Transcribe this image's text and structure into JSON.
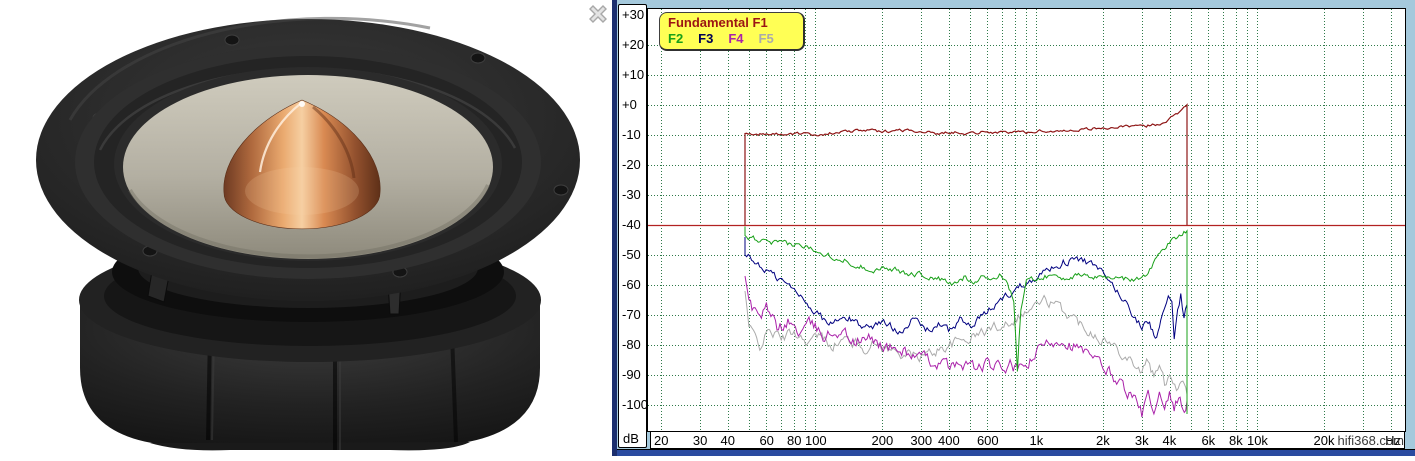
{
  "photo": {
    "description": "Black mid-woofer speaker driver with grey cone, rubber surround and polished copper phase plug, viewed from above on white background"
  },
  "close_icon": {
    "glyph": "close-x",
    "color": "#b8b8b8"
  },
  "panel": {
    "bg": "#a5c9dc",
    "frame_color": "#1c2f6e",
    "bottom_bar_color": "#2a4ba0"
  },
  "chart_data": {
    "type": "line",
    "title": "",
    "x_axis": {
      "scale": "log",
      "unit": "Hz",
      "range_hz": [
        17,
        46000
      ],
      "ticks": [
        {
          "f": 20,
          "label": "20"
        },
        {
          "f": 30,
          "label": "30"
        },
        {
          "f": 40,
          "label": "40"
        },
        {
          "f": 60,
          "label": "60"
        },
        {
          "f": 80,
          "label": "80"
        },
        {
          "f": 100,
          "label": "100"
        },
        {
          "f": 200,
          "label": "200"
        },
        {
          "f": 300,
          "label": "300"
        },
        {
          "f": 400,
          "label": "400"
        },
        {
          "f": 600,
          "label": "600"
        },
        {
          "f": 1000,
          "label": "1k"
        },
        {
          "f": 2000,
          "label": "2k"
        },
        {
          "f": 3000,
          "label": "3k"
        },
        {
          "f": 4000,
          "label": "4k"
        },
        {
          "f": 6000,
          "label": "6k"
        },
        {
          "f": 8000,
          "label": "8k"
        },
        {
          "f": 10000,
          "label": "10k"
        },
        {
          "f": 20000,
          "label": "20k"
        }
      ],
      "grid_freqs": [
        20,
        30,
        40,
        50,
        60,
        70,
        80,
        90,
        100,
        200,
        300,
        400,
        500,
        600,
        700,
        800,
        900,
        1000,
        2000,
        3000,
        4000,
        5000,
        6000,
        7000,
        8000,
        9000,
        10000,
        20000,
        30000,
        40000
      ]
    },
    "y_axis": {
      "unit": "dB",
      "range_db": [
        -100,
        30
      ],
      "labels": [
        {
          "db": 30,
          "label": "+30"
        },
        {
          "db": 20,
          "label": "+20"
        },
        {
          "db": 10,
          "label": "+10"
        },
        {
          "db": 0,
          "label": "+0"
        },
        {
          "db": -10,
          "label": "-10"
        },
        {
          "db": -20,
          "label": "-20"
        },
        {
          "db": -30,
          "label": "-30"
        },
        {
          "db": -40,
          "label": "-40"
        },
        {
          "db": -50,
          "label": "-50"
        },
        {
          "db": -60,
          "label": "-60"
        },
        {
          "db": -70,
          "label": "-70"
        },
        {
          "db": -80,
          "label": "-80"
        },
        {
          "db": -90,
          "label": "-90"
        },
        {
          "db": -100,
          "label": "-100"
        }
      ],
      "grid_dbs": [
        20,
        10,
        0,
        -10,
        -20,
        -30,
        -50,
        -60,
        -70,
        -80,
        -90,
        -100
      ]
    },
    "grid_color": "#2f7a4a",
    "legend": {
      "bg": "#ffff55",
      "title": "Fundamental F1",
      "title_color": "#9b1414",
      "items": [
        {
          "label": "F2",
          "color": "#18a018"
        },
        {
          "label": "F3",
          "color": "#000055"
        },
        {
          "label": "F4",
          "color": "#aa22aa"
        },
        {
          "label": "F5",
          "color": "#ababab"
        }
      ]
    },
    "marker_line": {
      "db": -40,
      "color": "#b22222"
    },
    "band": {
      "start_hz": 48,
      "end_hz": 4800
    },
    "watermark": "hifi368.com",
    "series": [
      {
        "name": "F5",
        "color": "#ababab",
        "noise": 2.2,
        "points": [
          [
            48,
            -62
          ],
          [
            50,
            -74
          ],
          [
            56,
            -80
          ],
          [
            62,
            -75
          ],
          [
            70,
            -78
          ],
          [
            80,
            -75.5
          ],
          [
            92,
            -79
          ],
          [
            105,
            -77
          ],
          [
            120,
            -80
          ],
          [
            140,
            -78
          ],
          [
            165,
            -81
          ],
          [
            190,
            -79.5
          ],
          [
            220,
            -82
          ],
          [
            260,
            -83
          ],
          [
            300,
            -84
          ],
          [
            350,
            -82
          ],
          [
            400,
            -80
          ],
          [
            460,
            -78.5
          ],
          [
            520,
            -77
          ],
          [
            600,
            -75
          ],
          [
            700,
            -73
          ],
          [
            800,
            -71
          ],
          [
            900,
            -69
          ],
          [
            1000,
            -66.5
          ],
          [
            1100,
            -65
          ],
          [
            1200,
            -66.5
          ],
          [
            1350,
            -69
          ],
          [
            1500,
            -71.5
          ],
          [
            1700,
            -74.5
          ],
          [
            1900,
            -77
          ],
          [
            2100,
            -79
          ],
          [
            2400,
            -82
          ],
          [
            2700,
            -85
          ],
          [
            3000,
            -89
          ],
          [
            3200,
            -85
          ],
          [
            3400,
            -91
          ],
          [
            3600,
            -87
          ],
          [
            3800,
            -93
          ],
          [
            4000,
            -89
          ],
          [
            4300,
            -94
          ],
          [
            4600,
            -91
          ],
          [
            4800,
            -95
          ]
        ]
      },
      {
        "name": "F4",
        "color": "#aa22aa",
        "noise": 2.6,
        "points": [
          [
            48,
            -57
          ],
          [
            50,
            -66
          ],
          [
            55,
            -71
          ],
          [
            60,
            -68
          ],
          [
            68,
            -75
          ],
          [
            75,
            -72
          ],
          [
            85,
            -76
          ],
          [
            95,
            -73
          ],
          [
            110,
            -77
          ],
          [
            130,
            -75
          ],
          [
            150,
            -79
          ],
          [
            180,
            -78
          ],
          [
            210,
            -81
          ],
          [
            250,
            -82
          ],
          [
            300,
            -84.5
          ],
          [
            360,
            -86
          ],
          [
            420,
            -87.5
          ],
          [
            480,
            -86
          ],
          [
            540,
            -88
          ],
          [
            600,
            -86.5
          ],
          [
            680,
            -88
          ],
          [
            760,
            -87
          ],
          [
            850,
            -88.5
          ],
          [
            950,
            -85
          ],
          [
            1050,
            -81
          ],
          [
            1150,
            -79
          ],
          [
            1300,
            -78
          ],
          [
            1450,
            -80
          ],
          [
            1600,
            -82
          ],
          [
            1800,
            -85
          ],
          [
            2000,
            -87
          ],
          [
            2200,
            -90
          ],
          [
            2500,
            -94
          ],
          [
            2800,
            -99
          ],
          [
            3000,
            -103
          ],
          [
            3200,
            -97
          ],
          [
            3400,
            -104
          ],
          [
            3600,
            -98
          ],
          [
            3800,
            -104
          ],
          [
            4000,
            -96
          ],
          [
            4200,
            -103
          ],
          [
            4400,
            -97
          ],
          [
            4600,
            -102
          ],
          [
            4800,
            -99
          ]
        ]
      },
      {
        "name": "F3",
        "color": "#000080",
        "noise": 1.6,
        "points": [
          [
            48,
            -44
          ],
          [
            48,
            -50
          ],
          [
            55,
            -53
          ],
          [
            65,
            -57
          ],
          [
            75,
            -60
          ],
          [
            90,
            -65
          ],
          [
            100,
            -69
          ],
          [
            115,
            -73
          ],
          [
            140,
            -71
          ],
          [
            170,
            -74
          ],
          [
            200,
            -72.5
          ],
          [
            240,
            -75
          ],
          [
            280,
            -71.5
          ],
          [
            320,
            -75
          ],
          [
            360,
            -73
          ],
          [
            400,
            -75.5
          ],
          [
            450,
            -71.5
          ],
          [
            500,
            -74
          ],
          [
            560,
            -71
          ],
          [
            620,
            -68
          ],
          [
            700,
            -64.5
          ],
          [
            800,
            -61.5
          ],
          [
            900,
            -59
          ],
          [
            1000,
            -57
          ],
          [
            1150,
            -54.5
          ],
          [
            1300,
            -52.5
          ],
          [
            1500,
            -51.5
          ],
          [
            1650,
            -52
          ],
          [
            1800,
            -53.5
          ],
          [
            2000,
            -56.5
          ],
          [
            2200,
            -60
          ],
          [
            2400,
            -63.5
          ],
          [
            2600,
            -67
          ],
          [
            2800,
            -71
          ],
          [
            3000,
            -74
          ],
          [
            3150,
            -71
          ],
          [
            3350,
            -75
          ],
          [
            3500,
            -78
          ],
          [
            3650,
            -73
          ],
          [
            3800,
            -67
          ],
          [
            3950,
            -64
          ],
          [
            4100,
            -67
          ],
          [
            4200,
            -79
          ],
          [
            4350,
            -70
          ],
          [
            4500,
            -63.5
          ],
          [
            4650,
            -72
          ],
          [
            4800,
            -67
          ],
          [
            4800,
            -103
          ]
        ]
      },
      {
        "name": "F2",
        "color": "#18a018",
        "noise": 1.2,
        "points": [
          [
            48,
            -40.5
          ],
          [
            48,
            -43.5
          ],
          [
            60,
            -46
          ],
          [
            80,
            -46.5
          ],
          [
            100,
            -48
          ],
          [
            120,
            -50.5
          ],
          [
            150,
            -53
          ],
          [
            180,
            -55
          ],
          [
            210,
            -54
          ],
          [
            250,
            -56
          ],
          [
            300,
            -56.5
          ],
          [
            360,
            -58
          ],
          [
            420,
            -60
          ],
          [
            470,
            -57.5
          ],
          [
            520,
            -58.5
          ],
          [
            570,
            -57
          ],
          [
            620,
            -58
          ],
          [
            680,
            -57
          ],
          [
            740,
            -59
          ],
          [
            790,
            -65
          ],
          [
            820,
            -88
          ],
          [
            850,
            -68
          ],
          [
            900,
            -59
          ],
          [
            1000,
            -57.5
          ],
          [
            1150,
            -57
          ],
          [
            1300,
            -57.5
          ],
          [
            1500,
            -57
          ],
          [
            1700,
            -57.5
          ],
          [
            1900,
            -57
          ],
          [
            2100,
            -57.5
          ],
          [
            2400,
            -57.5
          ],
          [
            2700,
            -58.5
          ],
          [
            3000,
            -57.5
          ],
          [
            3200,
            -55.5
          ],
          [
            3500,
            -51
          ],
          [
            3800,
            -47.5
          ],
          [
            4200,
            -44.5
          ],
          [
            4500,
            -43
          ],
          [
            4800,
            -41.5
          ],
          [
            4800,
            -103
          ]
        ]
      },
      {
        "name": "F1 fundamental",
        "color": "#8e1616",
        "noise": 0.6,
        "points": [
          [
            48,
            -40
          ],
          [
            48,
            -9.5
          ],
          [
            60,
            -9.8
          ],
          [
            80,
            -9.6
          ],
          [
            100,
            -9.8
          ],
          [
            130,
            -9.2
          ],
          [
            160,
            -8.3
          ],
          [
            200,
            -8.9
          ],
          [
            240,
            -8.3
          ],
          [
            300,
            -8.7
          ],
          [
            350,
            -9.6
          ],
          [
            420,
            -9.0
          ],
          [
            500,
            -9.4
          ],
          [
            600,
            -8.8
          ],
          [
            700,
            -9.4
          ],
          [
            800,
            -8.8
          ],
          [
            900,
            -9.2
          ],
          [
            1000,
            -8.6
          ],
          [
            1200,
            -8.8
          ],
          [
            1500,
            -8.2
          ],
          [
            1800,
            -7.9
          ],
          [
            2100,
            -7.6
          ],
          [
            2500,
            -7.3
          ],
          [
            3000,
            -7.1
          ],
          [
            3400,
            -6.6
          ],
          [
            3800,
            -5.6
          ],
          [
            4200,
            -3.6
          ],
          [
            4500,
            -1.8
          ],
          [
            4800,
            0.5
          ],
          [
            4800,
            -40
          ]
        ]
      }
    ]
  }
}
